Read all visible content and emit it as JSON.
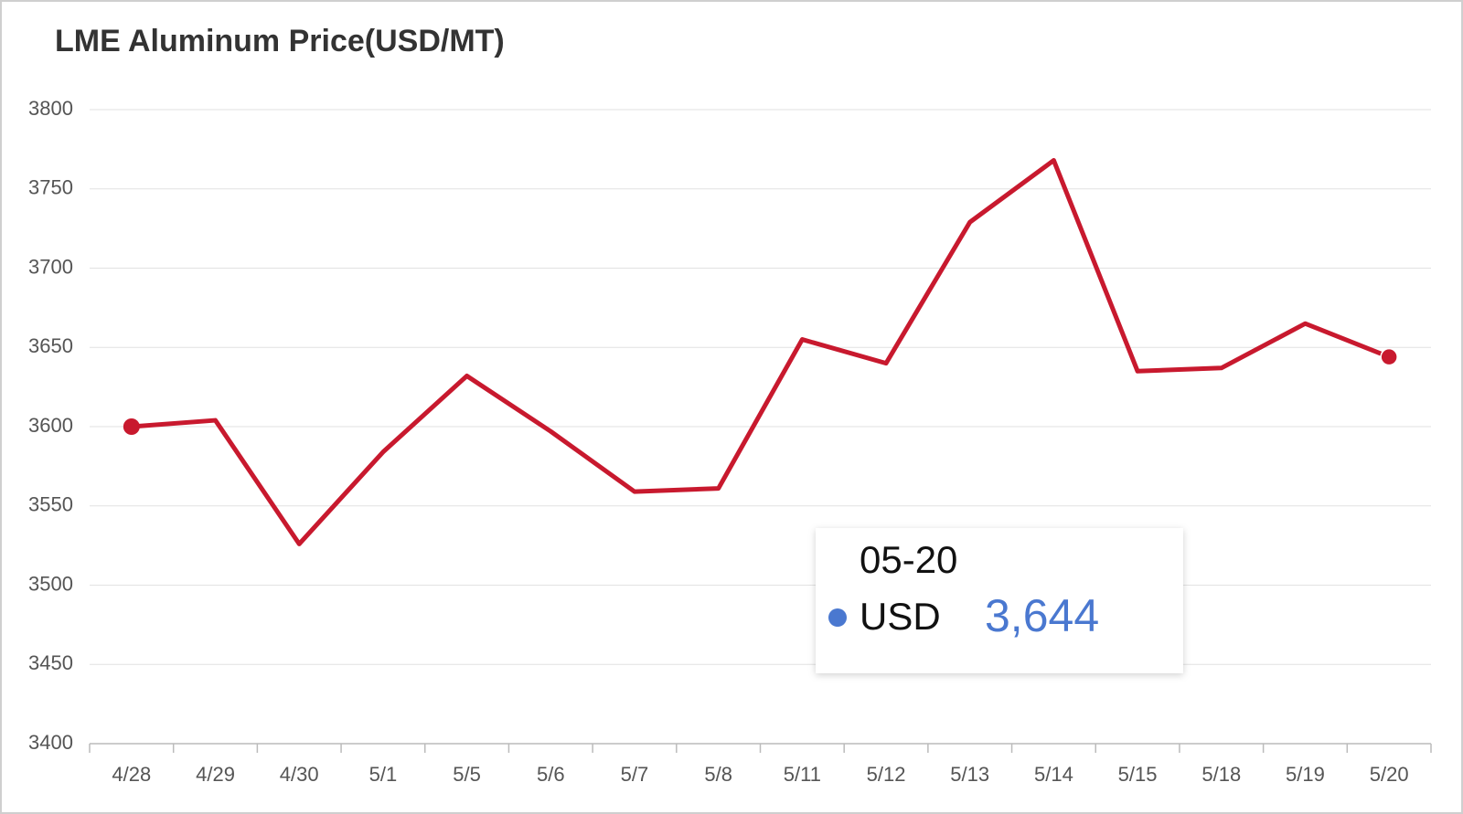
{
  "chart_data": {
    "type": "line",
    "title": "LME Aluminum Price(USD/MT)",
    "categories": [
      "4/28",
      "4/29",
      "4/30",
      "5/1",
      "5/5",
      "5/6",
      "5/7",
      "5/8",
      "5/11",
      "5/12",
      "5/13",
      "5/14",
      "5/15",
      "5/18",
      "5/19",
      "5/20"
    ],
    "series": [
      {
        "name": "USD",
        "color": "#c8192e",
        "values": [
          3600,
          3604,
          3526,
          3584,
          3632,
          3597,
          3559,
          3561,
          3655,
          3640,
          3729,
          3768,
          3635,
          3637,
          3665,
          3644
        ]
      }
    ],
    "ylim": [
      3400,
      3800
    ],
    "yticks": [
      3400,
      3450,
      3500,
      3550,
      3600,
      3650,
      3700,
      3750,
      3800
    ],
    "grid": true,
    "tooltip": {
      "date": "05-20",
      "value": 3644,
      "label": "3,644",
      "marker_color": "#4a78d0"
    }
  }
}
